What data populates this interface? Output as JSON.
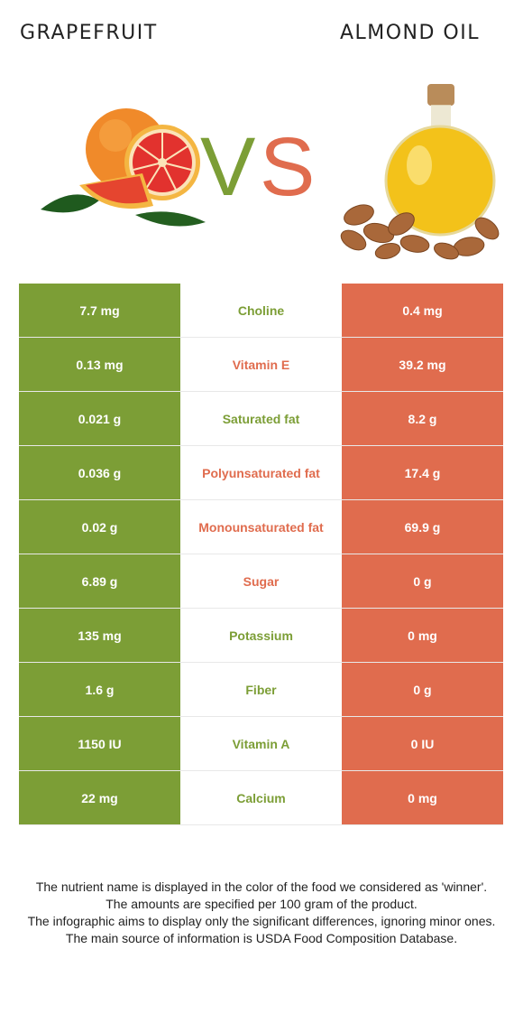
{
  "header": {
    "left_title": "GRAPEFRUIT",
    "right_title": "ALMOND OIL",
    "vs_left": "V",
    "vs_right": "S"
  },
  "colors": {
    "grapefruit": "#7c9e36",
    "almond_oil": "#e06c4e"
  },
  "rows": [
    {
      "left": "7.7 mg",
      "nutrient": "Choline",
      "right": "0.4 mg",
      "winner": "grapefruit"
    },
    {
      "left": "0.13 mg",
      "nutrient": "Vitamin E",
      "right": "39.2 mg",
      "winner": "almond_oil"
    },
    {
      "left": "0.021 g",
      "nutrient": "Saturated fat",
      "right": "8.2 g",
      "winner": "grapefruit"
    },
    {
      "left": "0.036 g",
      "nutrient": "Polyunsaturated fat",
      "right": "17.4 g",
      "winner": "almond_oil"
    },
    {
      "left": "0.02 g",
      "nutrient": "Monounsaturated fat",
      "right": "69.9 g",
      "winner": "almond_oil"
    },
    {
      "left": "6.89 g",
      "nutrient": "Sugar",
      "right": "0 g",
      "winner": "almond_oil"
    },
    {
      "left": "135 mg",
      "nutrient": "Potassium",
      "right": "0 mg",
      "winner": "grapefruit"
    },
    {
      "left": "1.6 g",
      "nutrient": "Fiber",
      "right": "0 g",
      "winner": "grapefruit"
    },
    {
      "left": "1150 IU",
      "nutrient": "Vitamin A",
      "right": "0 IU",
      "winner": "grapefruit"
    },
    {
      "left": "22 mg",
      "nutrient": "Calcium",
      "right": "0 mg",
      "winner": "grapefruit"
    }
  ],
  "footer": {
    "line1": "The nutrient name is displayed in the color of the food we considered as 'winner'.",
    "line2": "The amounts are specified per 100 gram of the product.",
    "line3": "The infographic aims to display only the significant differences, ignoring minor ones.",
    "line4": "The main source of information is USDA Food Composition Database."
  }
}
